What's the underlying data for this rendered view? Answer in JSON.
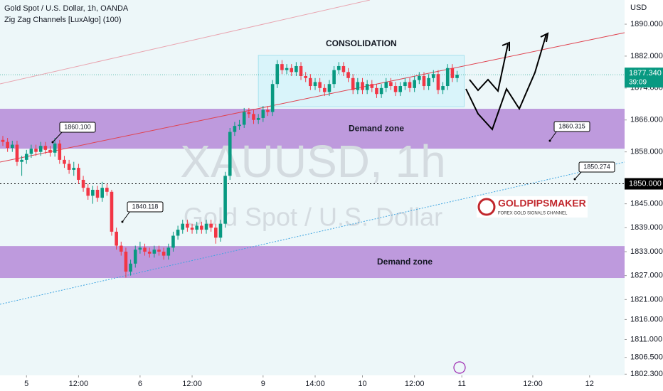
{
  "chart_data": {
    "type": "candlestick",
    "title": "Gold Spot / U.S. Dollar, 1h, OANDA",
    "indicator": "Zig Zag Channels [LuxAlgo] (100)",
    "watermark": "XAUUSD, 1h",
    "watermark_subtitle": "Gold Spot / U.S. Dollar",
    "currency": "USD",
    "up_color": "#089981",
    "down_color": "#f23645",
    "open": [
      1861,
      1860.5,
      1859,
      1859.8,
      1855.5,
      1856,
      1857.5,
      1858.8,
      1858,
      1859.5,
      1858.5,
      1857.8,
      1860.1,
      1856,
      1855,
      1853.5,
      1854,
      1851,
      1849,
      1847,
      1848.5,
      1846.5,
      1849,
      1848,
      1838,
      1834.5,
      1833,
      1828,
      1830,
      1833.5,
      1834,
      1833,
      1832.5,
      1833.5,
      1833,
      1832,
      1834,
      1837,
      1838.5,
      1840,
      1839,
      1838.5,
      1839.5,
      1838.5,
      1840,
      1839,
      1836.5,
      1840,
      1852,
      1863,
      1864.5,
      1864.8,
      1868,
      1867.5,
      1866,
      1866.5,
      1868.5,
      1868,
      1875,
      1880,
      1878.5,
      1879,
      1878,
      1879.5,
      1877,
      1876.5,
      1874.5,
      1875.5,
      1874,
      1873,
      1875,
      1878.5,
      1879.5,
      1878,
      1876.5,
      1873.5,
      1875.5,
      1873.5,
      1875,
      1874,
      1872.5,
      1874,
      1875.5,
      1874.5,
      1873,
      1874.5,
      1875.5,
      1874,
      1876,
      1877,
      1874.5,
      1876.5,
      1877.5,
      1873.5,
      1874.5,
      1879,
      1876.5
    ],
    "high": [
      1862,
      1861.5,
      1860.8,
      1860.8,
      1857,
      1858.5,
      1859.8,
      1859.8,
      1860.5,
      1860.5,
      1859.5,
      1861.5,
      1861,
      1857,
      1856,
      1855.5,
      1855,
      1852,
      1850,
      1849.5,
      1849.5,
      1850.5,
      1850,
      1848.5,
      1839,
      1835.5,
      1834,
      1831,
      1834.5,
      1835.5,
      1835,
      1834,
      1834.5,
      1834.5,
      1834,
      1835,
      1838,
      1839.5,
      1841,
      1841,
      1840,
      1840.5,
      1840.5,
      1841,
      1841,
      1840,
      1841,
      1853,
      1864,
      1865.5,
      1866,
      1869,
      1869,
      1868.5,
      1867.5,
      1869.5,
      1869.5,
      1876,
      1881,
      1881,
      1880,
      1880,
      1880.5,
      1880.5,
      1878,
      1877.5,
      1876.5,
      1876.5,
      1875,
      1876,
      1879.5,
      1880.5,
      1880.5,
      1879,
      1877.5,
      1876.5,
      1876.5,
      1876,
      1876,
      1875,
      1875,
      1876.5,
      1876.5,
      1875.5,
      1875.5,
      1876.5,
      1876.5,
      1877,
      1878,
      1878,
      1877.5,
      1878.5,
      1878.5,
      1875.5,
      1880,
      1880,
      1878.3
    ],
    "low": [
      1859.5,
      1858,
      1858,
      1854.5,
      1852,
      1855,
      1856.5,
      1857,
      1857,
      1857.5,
      1856.8,
      1856.8,
      1855,
      1854,
      1852.5,
      1852,
      1850,
      1848,
      1846,
      1845,
      1845.5,
      1845.5,
      1847,
      1837,
      1833.5,
      1832,
      1826.5,
      1827,
      1829,
      1832.5,
      1832,
      1831.5,
      1831.5,
      1832,
      1831,
      1831,
      1833,
      1836,
      1837.5,
      1838,
      1837.5,
      1837.5,
      1837.5,
      1837.5,
      1838,
      1835,
      1835.5,
      1839,
      1851,
      1862,
      1863.5,
      1864,
      1866.5,
      1865,
      1865,
      1865.5,
      1867,
      1867,
      1874,
      1877.5,
      1877.5,
      1877,
      1877,
      1876,
      1875.5,
      1873.5,
      1873.5,
      1873,
      1872,
      1872,
      1874,
      1877.5,
      1877,
      1875.5,
      1872.5,
      1872.5,
      1872.5,
      1872.5,
      1873,
      1871.5,
      1871.5,
      1873,
      1873.5,
      1872,
      1872,
      1873.5,
      1873,
      1873,
      1875,
      1873.5,
      1873.5,
      1875.5,
      1872.5,
      1872.5,
      1873.5,
      1875.5,
      1875.5
    ],
    "close": [
      1860.5,
      1859,
      1859.8,
      1855.5,
      1856,
      1857.5,
      1858.8,
      1858,
      1859.5,
      1858.5,
      1857.8,
      1860.1,
      1856,
      1855,
      1853.5,
      1854,
      1851,
      1849,
      1847,
      1848.5,
      1846.5,
      1849,
      1848,
      1838,
      1834.5,
      1833,
      1828,
      1830,
      1833.5,
      1834,
      1833,
      1832.5,
      1833.5,
      1833,
      1832,
      1834,
      1837,
      1838.5,
      1840,
      1839,
      1838.5,
      1839.5,
      1838.5,
      1840,
      1839,
      1836.5,
      1840,
      1852,
      1863,
      1864.5,
      1864.8,
      1868,
      1867.5,
      1866,
      1866.5,
      1868.5,
      1868,
      1875,
      1880,
      1878.5,
      1879,
      1878,
      1879.5,
      1877,
      1876.5,
      1874.5,
      1875.5,
      1874,
      1873,
      1875,
      1878.5,
      1879.5,
      1878,
      1876.5,
      1873.5,
      1875.5,
      1873.5,
      1875,
      1874,
      1872.5,
      1874,
      1875.5,
      1874.5,
      1873,
      1874.5,
      1875.5,
      1874,
      1876,
      1877,
      1874.5,
      1876.5,
      1877.5,
      1873.5,
      1874.5,
      1879,
      1876.5,
      1877.34
    ],
    "xlim": [
      -0.6,
      131.4
    ],
    "ylim": [
      1802.0,
      1896.06
    ],
    "xticks": [
      {
        "value": 5,
        "label": "5"
      },
      {
        "value": 16,
        "label": "12:00"
      },
      {
        "value": 29,
        "label": "6"
      },
      {
        "value": 40,
        "label": "12:00"
      },
      {
        "value": 55,
        "label": "9"
      },
      {
        "value": 66,
        "label": "14:00"
      },
      {
        "value": 76,
        "label": "10"
      },
      {
        "value": 87,
        "label": "12:00"
      },
      {
        "value": 97,
        "label": "11"
      },
      {
        "value": 112,
        "label": "12:00"
      },
      {
        "value": 124,
        "label": "12"
      }
    ],
    "yticks": [
      {
        "value": 1890,
        "label": "1890.000"
      },
      {
        "value": 1882,
        "label": "1882.000"
      },
      {
        "value": 1874,
        "label": "1874.000"
      },
      {
        "value": 1866,
        "label": "1866.000"
      },
      {
        "value": 1858,
        "label": "1858.000"
      },
      {
        "value": 1845,
        "label": "1845.000"
      },
      {
        "value": 1839,
        "label": "1839.000"
      },
      {
        "value": 1833,
        "label": "1833.000"
      },
      {
        "value": 1827,
        "label": "1827.000"
      },
      {
        "value": 1821,
        "label": "1821.000"
      },
      {
        "value": 1816,
        "label": "1816.000"
      },
      {
        "value": 1811,
        "label": "1811.000"
      },
      {
        "value": 1806.5,
        "label": "1806.500"
      },
      {
        "value": 1802.3,
        "label": "1802.300"
      }
    ],
    "zones": [
      {
        "label": "Demand zone",
        "ylim": [
          1858.8,
          1868.8
        ]
      },
      {
        "label": "Demand zone",
        "ylim": [
          1826.4,
          1834.4
        ]
      },
      {
        "label": "CONSOLIDATION",
        "xlim": [
          54,
          97.5
        ],
        "ylim": [
          1869.3,
          1882.2
        ]
      }
    ],
    "annotations": [
      "1860.100",
      "1840.118",
      "1860.315",
      "1850.274"
    ],
    "last_price": {
      "value": 1877.34,
      "label": "1877.340",
      "countdown": "39:09"
    },
    "price_line": {
      "value": 1850,
      "label": "1850.000"
    },
    "logo": {
      "name": "GOLDPIPSMAKER",
      "tagline": "FOREX GOLD SIGNALS CHANNEL"
    }
  }
}
